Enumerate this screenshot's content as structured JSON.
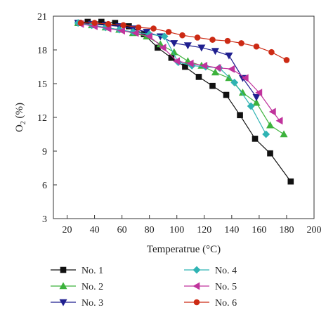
{
  "chart_data": {
    "type": "line",
    "title": "",
    "xlabel": "Temperatrue (°C)",
    "ylabel_main": "O",
    "ylabel_sub": "2",
    "ylabel_rest": " (%)",
    "xlim": [
      10,
      200
    ],
    "ylim": [
      3,
      21
    ],
    "xticks": [
      20,
      40,
      60,
      80,
      100,
      120,
      140,
      160,
      180,
      200
    ],
    "yticks": [
      3,
      6,
      9,
      12,
      15,
      18,
      21
    ],
    "grid": false,
    "legend_position": "bottom",
    "series": [
      {
        "name": "No. 1",
        "color": "#111111",
        "marker": "square",
        "x": [
          28,
          35,
          45,
          55,
          65,
          76,
          86,
          96,
          106,
          116,
          126,
          136,
          146,
          157,
          168,
          183
        ],
        "y": [
          20.4,
          20.5,
          20.5,
          20.4,
          20.1,
          19.4,
          18.2,
          17.3,
          16.5,
          15.6,
          14.8,
          14.0,
          12.2,
          10.1,
          8.8,
          6.3
        ]
      },
      {
        "name": "No. 2",
        "color": "#3cb23c",
        "marker": "triangle-up",
        "x": [
          28,
          38,
          48,
          58,
          68,
          78,
          88,
          98,
          108,
          118,
          128,
          138,
          148,
          158,
          168,
          178
        ],
        "y": [
          20.4,
          20.2,
          20.0,
          19.8,
          19.5,
          19.2,
          18.5,
          17.8,
          17.0,
          16.6,
          16.0,
          15.5,
          14.2,
          13.3,
          11.3,
          10.5
        ]
      },
      {
        "name": "No. 3",
        "color": "#1f1f8f",
        "marker": "triangle-down",
        "x": [
          28,
          38,
          48,
          58,
          68,
          78,
          88,
          98,
          108,
          118,
          128,
          138,
          148,
          158
        ],
        "y": [
          20.4,
          20.3,
          20.2,
          20.1,
          19.9,
          19.6,
          19.2,
          18.6,
          18.4,
          18.2,
          17.9,
          17.5,
          15.5,
          13.8
        ]
      },
      {
        "name": "No. 4",
        "color": "#2fb3b3",
        "marker": "diamond",
        "x": [
          28,
          38,
          48,
          58,
          68,
          80,
          91,
          101,
          111,
          121,
          131,
          142,
          154,
          165
        ],
        "y": [
          20.4,
          20.2,
          20.0,
          19.8,
          19.6,
          19.4,
          19.2,
          16.9,
          16.6,
          16.5,
          16.4,
          15.1,
          13.0,
          10.5
        ]
      },
      {
        "name": "No. 5",
        "color": "#c0339c",
        "marker": "triangle-left",
        "x": [
          30,
          40,
          50,
          60,
          70,
          80,
          90,
          100,
          110,
          120,
          130,
          140,
          150,
          160,
          170,
          175
        ],
        "y": [
          20.3,
          20.1,
          19.9,
          19.7,
          19.5,
          19.2,
          18.2,
          17.0,
          16.8,
          16.6,
          16.4,
          16.3,
          15.5,
          14.2,
          12.5,
          11.7
        ]
      },
      {
        "name": "No. 6",
        "color": "#cc2a14",
        "marker": "circle",
        "x": [
          30,
          40,
          50,
          61,
          72,
          83,
          94,
          104,
          115,
          126,
          137,
          147,
          158,
          169,
          180
        ],
        "y": [
          20.4,
          20.4,
          20.3,
          20.2,
          20.0,
          19.9,
          19.6,
          19.3,
          19.1,
          18.9,
          18.8,
          18.6,
          18.3,
          17.8,
          17.1
        ]
      }
    ]
  }
}
